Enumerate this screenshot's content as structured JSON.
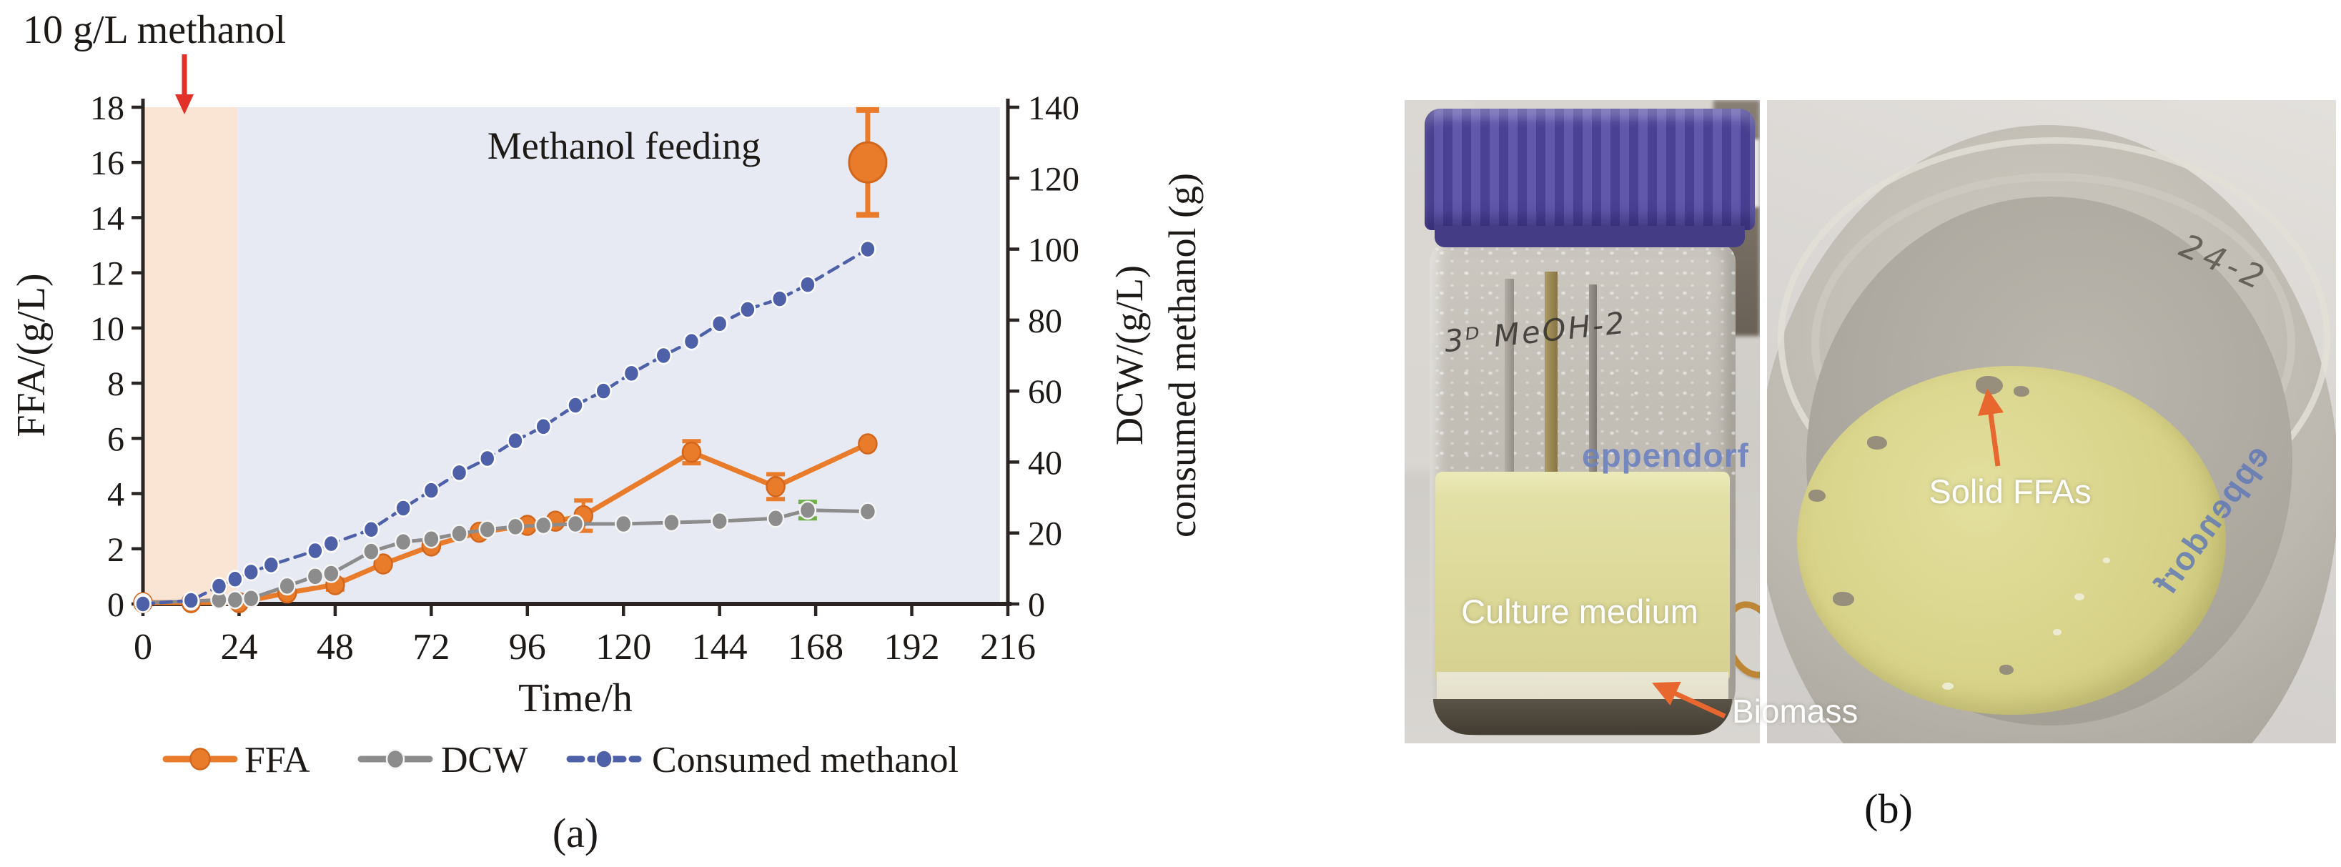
{
  "figure": {
    "panel_a_caption": "(a)",
    "panel_b_caption": "(b)"
  },
  "colors": {
    "ffa_orange": "#e87c2b",
    "ffa_orange_stroke": "#d2661c",
    "dcw_gray": "#8c8c8c",
    "methanol_blue": "#4d60a8",
    "batch_band": "#fae4d3",
    "feed_band": "#e8eaf3",
    "arrow_red": "#e23128",
    "arrow_orange": "#e8672e",
    "error_cap_green": "#6fb04b",
    "axis": "#2a2522"
  },
  "chart_data": {
    "type": "line",
    "xlabel": "Time/h",
    "ylabel_left": "FFA/(g/L)",
    "ylabel_right_line1": "DCW/(g/L)",
    "ylabel_right_line2": "consumed methanol (g)",
    "xlim": [
      0,
      216
    ],
    "ylim_left": [
      0,
      18
    ],
    "ylim_right": [
      0,
      140
    ],
    "x_ticks": [
      0,
      24,
      48,
      72,
      96,
      120,
      144,
      168,
      192,
      216
    ],
    "left_ticks": [
      0,
      2,
      4,
      6,
      8,
      10,
      12,
      14,
      16,
      18
    ],
    "right_ticks": [
      0,
      20,
      40,
      60,
      80,
      100,
      120,
      140
    ],
    "grid": false,
    "legend_position": "bottom",
    "annotations": {
      "methanol_pulse": "10 g/L methanol",
      "feeding_region": "Methanol feeding"
    },
    "bands": [
      {
        "name": "batch-phase",
        "x0": 0,
        "x1": 23.6,
        "color": "#fae4d3"
      },
      {
        "name": "feeding-phase",
        "x0": 23.6,
        "x1": 214,
        "color": "#e8eaf3"
      }
    ],
    "series": [
      {
        "name": "FFA",
        "axis": "left",
        "color": "#e87c2b",
        "marker_stroke": "#d2661c",
        "line_width": 7,
        "dash": null,
        "marker_rx": 12.5,
        "marker_ry": 13.5,
        "points": [
          [
            0,
            0.05
          ],
          [
            12,
            0.05
          ],
          [
            24,
            0.05
          ],
          [
            36,
            0.4
          ],
          [
            48,
            0.7
          ],
          [
            60,
            1.45
          ],
          [
            72,
            2.1
          ],
          [
            84,
            2.6
          ],
          [
            96,
            2.85
          ],
          [
            103,
            3.0
          ],
          [
            110,
            3.2
          ],
          [
            137,
            5.5
          ],
          [
            158,
            4.25
          ],
          [
            181,
            5.8
          ]
        ],
        "errors": [
          {
            "x": 48,
            "y": 0.7,
            "e": 0.18
          },
          {
            "x": 110,
            "y": 3.2,
            "e": 0.55
          },
          {
            "x": 137,
            "y": 5.5,
            "e": 0.4
          },
          {
            "x": 158,
            "y": 4.25,
            "e": 0.45
          }
        ]
      },
      {
        "name": "DCW",
        "axis": "left",
        "color": "#8c8c8c",
        "marker_stroke": "#f5f5f5",
        "line_width": 5,
        "dash": null,
        "marker_rx": 11,
        "marker_ry": 12,
        "points": [
          [
            0,
            0.05
          ],
          [
            12,
            0.1
          ],
          [
            19,
            0.15
          ],
          [
            23,
            0.15
          ],
          [
            27,
            0.2
          ],
          [
            36,
            0.65
          ],
          [
            43,
            1.0
          ],
          [
            47,
            1.1
          ],
          [
            57,
            1.9
          ],
          [
            65,
            2.25
          ],
          [
            72,
            2.35
          ],
          [
            79,
            2.55
          ],
          [
            86,
            2.7
          ],
          [
            93,
            2.8
          ],
          [
            100,
            2.85
          ],
          [
            108,
            2.9
          ],
          [
            120,
            2.9
          ],
          [
            132,
            2.95
          ],
          [
            144,
            3.0
          ],
          [
            158,
            3.1
          ],
          [
            166,
            3.4
          ],
          [
            181,
            3.35
          ]
        ],
        "errors": [
          {
            "x": 166,
            "y": 3.4,
            "e": 0.3,
            "cap_color": "#6fb04b"
          }
        ]
      },
      {
        "name": "Consumed methanol",
        "axis": "right",
        "color": "#4d60a8",
        "marker_stroke": "#ffffff",
        "line_width": 4.5,
        "dash": "15 10",
        "marker_rx": 10.5,
        "marker_ry": 11.5,
        "points": [
          [
            0,
            0
          ],
          [
            12,
            1
          ],
          [
            19,
            5
          ],
          [
            23,
            7
          ],
          [
            27,
            9
          ],
          [
            32,
            11
          ],
          [
            43,
            15
          ],
          [
            47,
            17
          ],
          [
            57,
            21
          ],
          [
            65,
            27
          ],
          [
            72,
            32
          ],
          [
            79,
            37
          ],
          [
            86,
            41
          ],
          [
            93,
            46
          ],
          [
            100,
            50
          ],
          [
            108,
            56
          ],
          [
            115,
            60
          ],
          [
            122,
            65
          ],
          [
            130,
            70
          ],
          [
            137,
            74
          ],
          [
            144,
            79
          ],
          [
            151,
            83
          ],
          [
            159,
            86
          ],
          [
            166,
            90
          ],
          [
            181,
            100
          ]
        ],
        "errors": []
      }
    ],
    "outlier_point": {
      "series": "FFA",
      "x": 181,
      "y": 16,
      "e": 1.9,
      "color": "#e87c2b"
    }
  },
  "photo": {
    "culture_medium_label": "Culture medium",
    "biomass_label": "Biomass",
    "solid_ffas_label": "Solid FFAs",
    "bottle_handwriting": "3ᴰ MeOH-2",
    "bottle_brand": "eppendorf",
    "beaker_brand": "eppendorf",
    "beaker_handwriting": "24-2"
  }
}
